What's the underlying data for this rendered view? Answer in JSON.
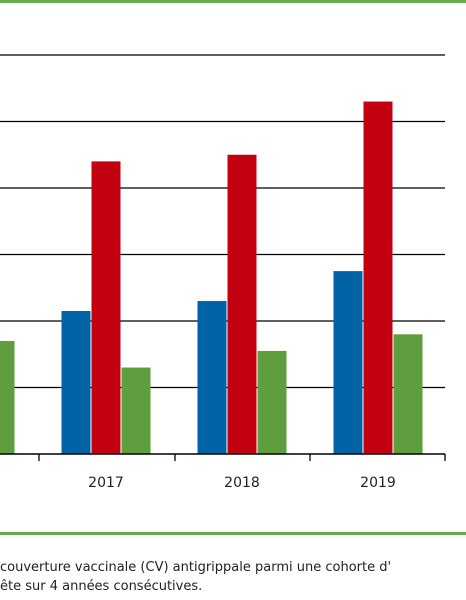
{
  "chart_data": {
    "type": "bar",
    "categories": [
      "",
      "2017",
      "2018",
      "2019"
    ],
    "series": [
      {
        "color": "#0063a6",
        "values": [
          null,
          21.5,
          23,
          27.5
        ]
      },
      {
        "color": "#c30010",
        "values": [
          null,
          44,
          45,
          53
        ]
      },
      {
        "color": "#5e9e3f",
        "values": [
          17,
          13,
          15.5,
          18
        ]
      }
    ],
    "ylim": [
      0,
      60
    ],
    "gridlines": [
      10,
      20,
      30,
      40,
      50,
      60
    ],
    "grid": true,
    "title": "",
    "xlabel": "",
    "ylabel": ""
  },
  "caption": {
    "line1": "couverture vaccinale (CV) antigrippale parmi une cohorte d'",
    "line2": "ête sur 4 années consécutives."
  },
  "colors": {
    "accent_rule": "#6aa84f"
  }
}
